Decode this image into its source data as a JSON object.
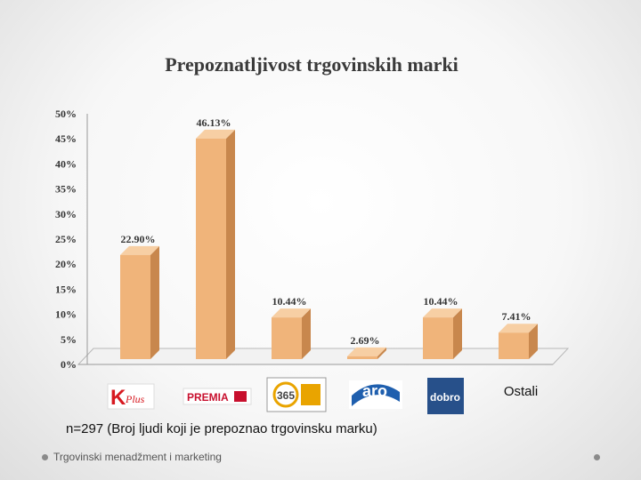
{
  "chart_data": {
    "type": "bar",
    "title": "Prepoznatljivost trgovinskih marki",
    "categories": [
      "K Plus",
      "PREMIA",
      "365",
      "aro",
      "dobro",
      "Ostali"
    ],
    "values": [
      22.9,
      46.13,
      10.44,
      2.69,
      10.44,
      7.41
    ],
    "data_labels": [
      "22.90%",
      "46.13%",
      "10.44%",
      "2.69%",
      "10.44%",
      "7.41%"
    ],
    "ylim": [
      0,
      50
    ],
    "yticks": [
      "0%",
      "5%",
      "10%",
      "15%",
      "20%",
      "25%",
      "30%",
      "35%",
      "40%",
      "45%",
      "50%"
    ],
    "bar_color": "#f0b47a",
    "bar_side_color": "#c8874d",
    "bar_top_color": "#f7cfa4",
    "xlabel": "",
    "ylabel": "",
    "legend": "none",
    "grid": false
  },
  "slide": {
    "note": "n=297 (Broj ljudi koji je prepoznao trgovinsku marku)",
    "footer": "Trgovinski menadžment i marketing"
  },
  "logos": {
    "kplus": {
      "letter": "K",
      "word": "Plus",
      "color": "#d71920"
    },
    "premia": {
      "word": "PREMIA",
      "color": "#c8102e"
    },
    "c365": {
      "text": "365",
      "color": "#e9a400"
    },
    "aro": {
      "text": "aro",
      "color": "#1f5fae"
    },
    "dobro": {
      "text": "dobro",
      "color": "#27508a"
    }
  }
}
